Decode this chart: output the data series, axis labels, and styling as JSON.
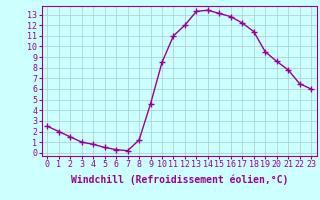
{
  "x": [
    0,
    1,
    2,
    3,
    4,
    5,
    6,
    7,
    8,
    9,
    10,
    11,
    12,
    13,
    14,
    15,
    16,
    17,
    18,
    19,
    20,
    21,
    22,
    23
  ],
  "y": [
    2.5,
    2.0,
    1.5,
    1.0,
    0.8,
    0.5,
    0.3,
    0.2,
    1.2,
    4.6,
    8.5,
    11.0,
    12.0,
    13.3,
    13.4,
    13.1,
    12.8,
    12.2,
    11.4,
    9.5,
    8.6,
    7.8,
    6.5,
    6.0
  ],
  "line_color": "#990099",
  "marker": "+",
  "marker_size": 4,
  "background_color": "#ccffff",
  "grid_color": "#aacccc",
  "xlabel": "Windchill (Refroidissement éolien,°C)",
  "xlabel_fontsize": 7,
  "ylabel_ticks": [
    0,
    1,
    2,
    3,
    4,
    5,
    6,
    7,
    8,
    9,
    10,
    11,
    12,
    13
  ],
  "xlabel_ticks": [
    0,
    1,
    2,
    3,
    4,
    5,
    6,
    7,
    8,
    9,
    10,
    11,
    12,
    13,
    14,
    15,
    16,
    17,
    18,
    19,
    20,
    21,
    22,
    23
  ],
  "ylim": [
    -0.3,
    13.8
  ],
  "xlim": [
    -0.5,
    23.5
  ],
  "tick_fontsize": 6,
  "tick_color": "#990099",
  "spine_color": "#990099",
  "axis_bg": "#ccffff",
  "marker_edge_width": 1.0,
  "line_width": 1.0
}
